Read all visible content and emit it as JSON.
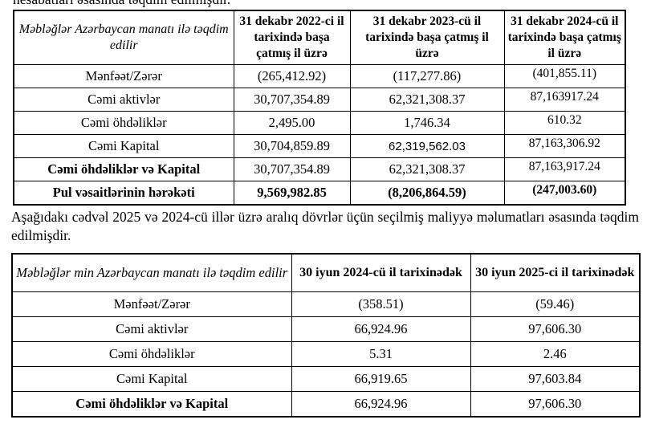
{
  "page": {
    "top_text_cutoff": "hesabatları əsasında təqdim edilmişdir.",
    "middle_paragraph": "Aşağıdakı cədvəl 2025 və 2024-cü illər üzrə aralıq dövrlər üçün seçilmiş maliyyə məlumatları əsasında təqdim edilmişdir."
  },
  "table1": {
    "header": {
      "label_col": "Məbləğlər Azərbaycan manatı ilə təqdim edilir",
      "col_2022": "31 dekabr 2022-ci il tarixində başa çatmış il üzrə",
      "col_2023": "31 dekabr 2023-cü il tarixində başa çatmış il üzrə",
      "col_2024": "31 dekabr 2024-cü il tarixində başa çatmış il üzrə"
    },
    "rows": [
      {
        "label": "Mənfəət/Zərər",
        "values": [
          "(265,412.92)",
          "(117,277.86)",
          "(401,855.11)"
        ]
      },
      {
        "label": "Cəmi aktivlər",
        "values": [
          "30,707,354.89",
          "62,321,308.37",
          "87,163917.24"
        ]
      },
      {
        "label": "Cəmi öhdəliklər",
        "values": [
          "2,495.00",
          "1,746.34",
          "610.32"
        ]
      },
      {
        "label": "Cəmi Kapital",
        "values": [
          "30,704,859.89",
          "62,319,562.03",
          "87,163,306.92"
        ]
      },
      {
        "label": "Cəmi öhdəliklər və Kapital",
        "values": [
          "30,707,354.89",
          "62,321,308.37",
          "87,163,917.24"
        ]
      },
      {
        "label": "Pul vəsaitlərinin hərəkəti",
        "values": [
          "9,569,982.85",
          "(8,206,864.59)",
          "(247,003.60)"
        ]
      }
    ]
  },
  "table2": {
    "header": {
      "label_col": "Məbləğlər min Azərbaycan manatı ilə təqdim edilir",
      "col_jun2024": "30 iyun 2024-cü il tarixinədək",
      "col_jun2025": "30 iyun 2025-ci il tarixinədək"
    },
    "rows": [
      {
        "label": "Mənfəət/Zərər",
        "values": [
          "(358.51)",
          "(59.46)"
        ]
      },
      {
        "label": "Cəmi aktivlər",
        "values": [
          "66,924.96",
          "97,606.30"
        ]
      },
      {
        "label": "Cəmi öhdəliklər",
        "values": [
          "5.31",
          "2.46"
        ]
      },
      {
        "label": "Cəmi Kapital",
        "values": [
          "66,919.65",
          "97,603.84"
        ]
      },
      {
        "label": "Cəmi öhdəliklər və Kapital",
        "values": [
          "66,924.96",
          "97,606.30"
        ]
      }
    ]
  }
}
